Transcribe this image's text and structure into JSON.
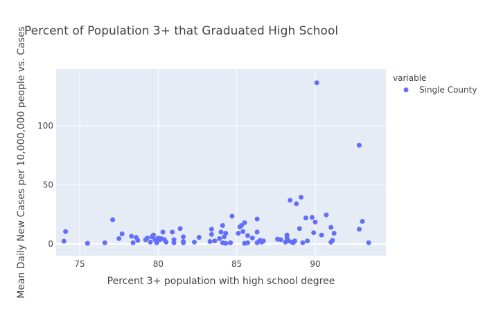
{
  "chart_data": {
    "type": "scatter",
    "title": "Percent of Population 3+ that Graduated High School",
    "xlabel": "Percent 3+ population with high school degree",
    "ylabel": "Mean Daily New Cases per 10,000,000 people vs. Cases",
    "xlim": [
      73.5,
      94.5
    ],
    "ylim": [
      -10,
      148
    ],
    "xticks": [
      75,
      80,
      85,
      90
    ],
    "yticks": [
      0,
      50,
      100
    ],
    "grid": true,
    "legend": {
      "title": "variable",
      "placement": "right",
      "entries": [
        "Single County"
      ]
    },
    "marker_color": "#636efa",
    "plot_background": "#e5ecf6",
    "series": [
      {
        "name": "Single County",
        "points": [
          [
            74.0,
            2.3
          ],
          [
            74.1,
            10.5
          ],
          [
            75.5,
            0.5
          ],
          [
            76.6,
            1.0
          ],
          [
            77.1,
            20.5
          ],
          [
            77.5,
            4.5
          ],
          [
            77.7,
            8.5
          ],
          [
            78.3,
            6.5
          ],
          [
            78.4,
            1.0
          ],
          [
            78.6,
            5.5
          ],
          [
            78.7,
            3.0
          ],
          [
            79.2,
            3.5
          ],
          [
            79.3,
            5.0
          ],
          [
            79.5,
            1.5
          ],
          [
            79.6,
            6.0
          ],
          [
            79.7,
            7.5
          ],
          [
            79.8,
            3.5
          ],
          [
            79.9,
            1.0
          ],
          [
            80.0,
            5.0
          ],
          [
            80.1,
            3.5
          ],
          [
            80.2,
            4.5
          ],
          [
            80.3,
            10.0
          ],
          [
            80.4,
            3.5
          ],
          [
            80.5,
            1.5
          ],
          [
            80.9,
            10.0
          ],
          [
            81.0,
            3.5
          ],
          [
            81.0,
            1.0
          ],
          [
            81.4,
            13.0
          ],
          [
            81.6,
            6.0
          ],
          [
            81.6,
            1.0
          ],
          [
            81.6,
            2.0
          ],
          [
            82.3,
            1.5
          ],
          [
            82.6,
            5.5
          ],
          [
            83.3,
            2.0
          ],
          [
            83.4,
            8.0
          ],
          [
            83.4,
            12.5
          ],
          [
            83.6,
            2.5
          ],
          [
            83.9,
            4.5
          ],
          [
            84.0,
            10.0
          ],
          [
            84.1,
            1.0
          ],
          [
            84.1,
            15.5
          ],
          [
            84.2,
            6.0
          ],
          [
            84.3,
            9.0
          ],
          [
            84.3,
            0.5
          ],
          [
            84.6,
            1.0
          ],
          [
            84.7,
            23.5
          ],
          [
            85.1,
            9.0
          ],
          [
            85.2,
            14.5
          ],
          [
            85.3,
            15.5
          ],
          [
            85.4,
            10.5
          ],
          [
            85.5,
            18.0
          ],
          [
            85.5,
            0.5
          ],
          [
            85.7,
            7.0
          ],
          [
            85.7,
            1.0
          ],
          [
            86.0,
            5.0
          ],
          [
            86.3,
            21.0
          ],
          [
            86.3,
            10.0
          ],
          [
            86.3,
            1.0
          ],
          [
            86.4,
            2.0
          ],
          [
            86.5,
            3.0
          ],
          [
            86.6,
            1.5
          ],
          [
            86.7,
            2.5
          ],
          [
            87.6,
            4.0
          ],
          [
            87.8,
            3.5
          ],
          [
            88.1,
            1.5
          ],
          [
            88.2,
            5.0
          ],
          [
            88.2,
            7.5
          ],
          [
            88.3,
            2.5
          ],
          [
            88.4,
            37.0
          ],
          [
            88.5,
            1.5
          ],
          [
            88.6,
            1.0
          ],
          [
            88.7,
            2.5
          ],
          [
            88.8,
            34.0
          ],
          [
            89.0,
            13.0
          ],
          [
            89.1,
            39.5
          ],
          [
            89.2,
            1.0
          ],
          [
            89.4,
            22.0
          ],
          [
            89.5,
            2.5
          ],
          [
            89.8,
            22.5
          ],
          [
            89.9,
            9.5
          ],
          [
            90.0,
            18.5
          ],
          [
            90.1,
            136.5
          ],
          [
            90.4,
            7.5
          ],
          [
            90.7,
            24.5
          ],
          [
            91.0,
            1.5
          ],
          [
            91.0,
            14.0
          ],
          [
            91.1,
            3.0
          ],
          [
            91.2,
            9.0
          ],
          [
            92.8,
            83.5
          ],
          [
            92.8,
            12.5
          ],
          [
            93.0,
            19.0
          ],
          [
            93.4,
            1.0
          ]
        ]
      }
    ]
  }
}
